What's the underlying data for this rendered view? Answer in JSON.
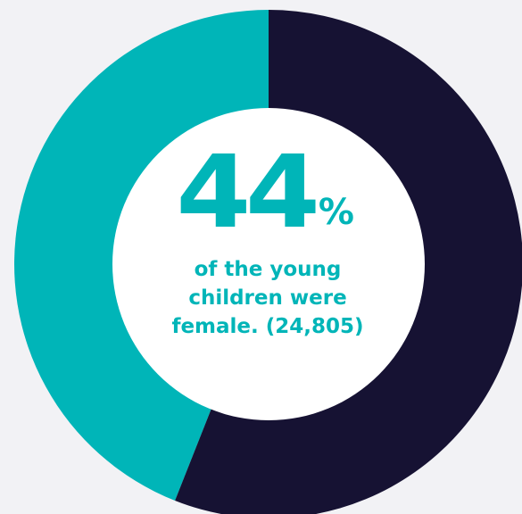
{
  "colors": {
    "background": "#f2f2f5",
    "highlight": "#00b5b8",
    "remainder": "#161233",
    "center": "#ffffff"
  },
  "chart_data": {
    "type": "pie",
    "style": "donut",
    "slices": [
      {
        "value": 44,
        "color": "#00b5b8"
      },
      {
        "value": 56,
        "color": "#161233"
      }
    ],
    "start": "top",
    "direction": "counterclockwise"
  },
  "center": {
    "value": "44",
    "unit": "%",
    "caption_lines": [
      "of the young",
      "children were",
      "female. (24,805)"
    ]
  }
}
